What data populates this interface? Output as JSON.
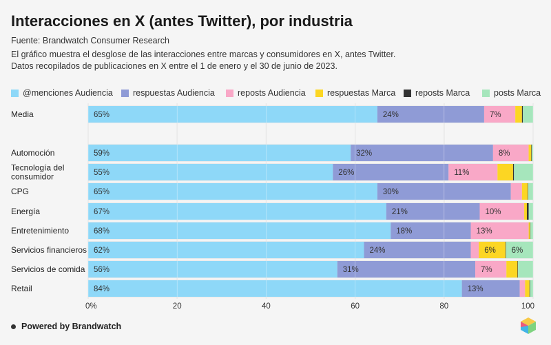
{
  "header": {
    "title": "Interacciones en X (antes Twitter), por industria",
    "source": "Fuente: Brandwatch Consumer Research",
    "description_line1": "El gráfico muestra el desglose de las interacciones entre marcas y consumidores en X, antes Twitter.",
    "description_line2": "Datos recopilados de publicaciones en X entre el 1 de enero y el 30 de junio de 2023."
  },
  "footer": {
    "powered_by": "Powered by Brandwatch"
  },
  "colors": {
    "menciones_audiencia": "#8ed8f8",
    "respuestas_audiencia": "#8f9bd6",
    "reposts_audiencia": "#f9a8c7",
    "respuestas_marca": "#fcd623",
    "reposts_marca": "#333333",
    "posts_marca": "#a6e6bc"
  },
  "chart_data": {
    "type": "bar",
    "orientation": "horizontal",
    "stacked": true,
    "title": "Interacciones en X (antes Twitter), por industria",
    "xlabel": "",
    "ylabel": "",
    "xlim": [
      0,
      100
    ],
    "xticks": [
      "0%",
      "20",
      "40",
      "60",
      "80",
      "100"
    ],
    "grid": true,
    "legend_position": "top",
    "categories": [
      "Media",
      "Automoción",
      "Tecnología del consumidor",
      "CPG",
      "Energía",
      "Entretenimiento",
      "Servicios financieros",
      "Servicios de comida",
      "Retail"
    ],
    "category_lines": [
      [
        "Media"
      ],
      [
        "Automoción"
      ],
      [
        "Tecnología del",
        "consumidor"
      ],
      [
        "CPG"
      ],
      [
        "Energía"
      ],
      [
        "Entretenimiento"
      ],
      [
        "Servicios financieros"
      ],
      [
        "Servicios de comida"
      ],
      [
        "Retail"
      ]
    ],
    "series": [
      {
        "name": "@menciones Audiencia",
        "key": "menciones_audiencia",
        "values": [
          65,
          59,
          55,
          65,
          67,
          68,
          62,
          56,
          84
        ]
      },
      {
        "name": "respuestas Audiencia",
        "key": "respuestas_audiencia",
        "values": [
          24,
          32,
          26,
          30,
          21,
          18,
          24,
          31,
          13
        ]
      },
      {
        "name": "reposts Audiencia",
        "key": "reposts_audiencia",
        "values": [
          7,
          8,
          11,
          2.5,
          10,
          13,
          1.8,
          7,
          1.2
        ]
      },
      {
        "name": "respuestas Marca",
        "key": "respuestas_marca",
        "values": [
          1.5,
          0.6,
          3.5,
          1.3,
          0.6,
          0.3,
          6,
          2.5,
          1
        ]
      },
      {
        "name": "reposts Marca",
        "key": "reposts_marca",
        "values": [
          0.2,
          0.1,
          0.2,
          0.1,
          0.4,
          0.1,
          0.1,
          0.1,
          0.1
        ]
      },
      {
        "name": "posts Marca",
        "key": "posts_marca",
        "values": [
          2.3,
          0.3,
          4.3,
          1.1,
          1,
          0.6,
          6.1,
          3.4,
          0.7
        ]
      }
    ],
    "data_labels": [
      [
        "65%",
        "24%",
        "7%",
        "",
        "",
        ""
      ],
      [
        "59%",
        "32%",
        "8%",
        "",
        "",
        ""
      ],
      [
        "55%",
        "26%",
        "11%",
        "",
        "",
        ""
      ],
      [
        "65%",
        "30%",
        "",
        "",
        "",
        ""
      ],
      [
        "67%",
        "21%",
        "10%",
        "",
        "",
        ""
      ],
      [
        "68%",
        "18%",
        "13%",
        "",
        "",
        ""
      ],
      [
        "62%",
        "24%",
        "",
        "6%",
        "",
        "6%"
      ],
      [
        "56%",
        "31%",
        "7%",
        "",
        "",
        ""
      ],
      [
        "84%",
        "13%",
        "",
        "",
        "",
        ""
      ]
    ]
  }
}
